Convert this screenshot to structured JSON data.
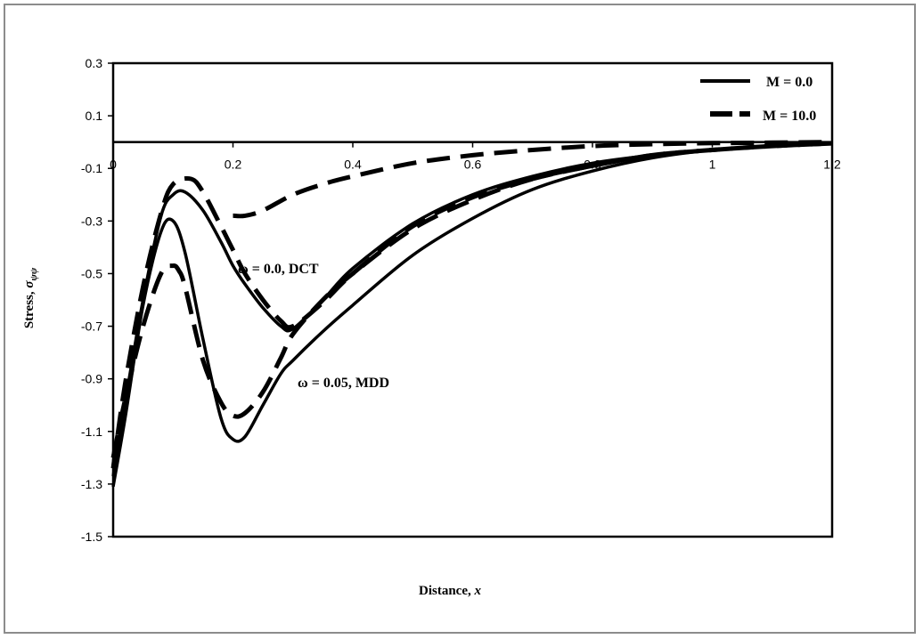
{
  "chart_data": {
    "type": "line",
    "xlabel_text": "Distance, ",
    "xlabel_var": "x",
    "ylabel_text": "Stress, ",
    "ylabel_var": "σ",
    "ylabel_sub": "ψψ",
    "xlim": [
      0,
      1.2
    ],
    "ylim": [
      -1.5,
      0.3
    ],
    "xticks": [
      "0",
      "0.2",
      "0.4",
      "0.6",
      "0.8",
      "1",
      "1.2"
    ],
    "yticks": [
      "0.3",
      "0.1",
      "-0.1",
      "-0.3",
      "-0.5",
      "-0.7",
      "-0.9",
      "-1.1",
      "-1.3",
      "-1.5"
    ],
    "grid": false,
    "legend_position": "top-right",
    "legend": [
      {
        "label": "M = 0.0",
        "style": "solid"
      },
      {
        "label": "M = 10.0",
        "style": "dashed"
      }
    ],
    "annotations": [
      {
        "text": "ω = 0.0,  DCT",
        "x": 0.21,
        "y": -0.48
      },
      {
        "text": "ω = 0.05,  MDD",
        "x": 0.31,
        "y": -0.96
      }
    ],
    "series": [
      {
        "group": "ω = 0.0, DCT",
        "style": "solid",
        "x": [
          0.0,
          0.02,
          0.05,
          0.08,
          0.1,
          0.12,
          0.15,
          0.18,
          0.2,
          0.22,
          0.25,
          0.28,
          0.3,
          0.35,
          0.4,
          0.5,
          0.6,
          0.7,
          0.8,
          0.9,
          1.0,
          1.1,
          1.2
        ],
        "y": [
          -1.27,
          -0.99,
          -0.6,
          -0.28,
          -0.2,
          -0.19,
          -0.26,
          -0.38,
          -0.47,
          -0.54,
          -0.63,
          -0.7,
          -0.71,
          -0.6,
          -0.48,
          -0.31,
          -0.2,
          -0.13,
          -0.08,
          -0.05,
          -0.03,
          -0.015,
          -0.005
        ]
      },
      {
        "group": "ω = 0.0, DCT",
        "style": "dashed",
        "x": [
          0.0,
          0.02,
          0.05,
          0.08,
          0.1,
          0.13,
          0.15,
          0.18,
          0.2,
          0.22,
          0.25,
          0.28,
          0.3,
          0.35,
          0.4,
          0.5,
          0.6,
          0.7,
          0.8,
          0.9,
          1.0,
          1.1,
          1.2
        ],
        "y": [
          -1.24,
          -0.92,
          -0.55,
          -0.27,
          -0.16,
          -0.14,
          -0.19,
          -0.32,
          -0.41,
          -0.5,
          -0.6,
          -0.68,
          -0.7,
          -0.61,
          -0.5,
          -0.32,
          -0.21,
          -0.14,
          -0.09,
          -0.05,
          -0.03,
          -0.015,
          -0.005
        ]
      },
      {
        "group": "ω = 0.05, MDD",
        "style": "solid",
        "x": [
          0.0,
          0.02,
          0.05,
          0.08,
          0.1,
          0.12,
          0.15,
          0.18,
          0.2,
          0.22,
          0.25,
          0.28,
          0.3,
          0.35,
          0.4,
          0.5,
          0.6,
          0.7,
          0.8,
          0.9,
          1.0,
          1.1,
          1.2
        ],
        "y": [
          -1.31,
          -1.05,
          -0.62,
          -0.34,
          -0.3,
          -0.42,
          -0.75,
          -1.05,
          -1.13,
          -1.12,
          -1.0,
          -0.88,
          -0.83,
          -0.72,
          -0.62,
          -0.43,
          -0.29,
          -0.18,
          -0.11,
          -0.06,
          -0.03,
          -0.015,
          -0.005
        ]
      },
      {
        "group": "ω = 0.05, MDD",
        "style": "dashed",
        "x": [
          0.0,
          0.02,
          0.05,
          0.08,
          0.1,
          0.11,
          0.12,
          0.15,
          0.18,
          0.2,
          0.22,
          0.25,
          0.28,
          0.3,
          0.35,
          0.4,
          0.5,
          0.6,
          0.7,
          0.8,
          0.9,
          1.0,
          1.1,
          1.2
        ],
        "y": [
          -1.2,
          -0.98,
          -0.7,
          -0.5,
          -0.47,
          -0.49,
          -0.55,
          -0.83,
          -0.99,
          -1.04,
          -1.03,
          -0.95,
          -0.82,
          -0.73,
          -0.6,
          -0.5,
          -0.33,
          -0.22,
          -0.14,
          -0.09,
          -0.05,
          -0.03,
          -0.015,
          -0.005
        ]
      },
      {
        "group": "M = 10.0 upper",
        "style": "dashed",
        "x": [
          0.2,
          0.22,
          0.25,
          0.3,
          0.35,
          0.4,
          0.5,
          0.6,
          0.7,
          0.8,
          0.9,
          1.0,
          1.1,
          1.2
        ],
        "y": [
          -0.28,
          -0.28,
          -0.26,
          -0.2,
          -0.16,
          -0.13,
          -0.08,
          -0.05,
          -0.03,
          -0.015,
          -0.008,
          -0.004,
          -0.002,
          0.0
        ]
      }
    ]
  }
}
